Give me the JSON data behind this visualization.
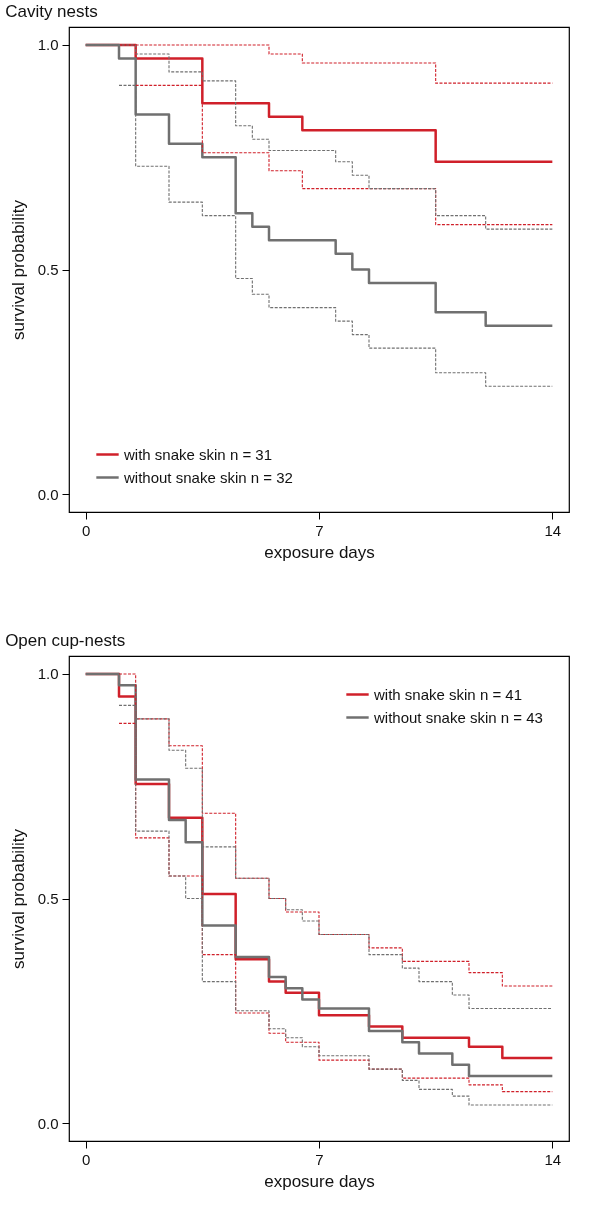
{
  "chart_data": [
    {
      "type": "step",
      "title": "Cavity nests",
      "xlabel": "exposure days",
      "ylabel": "survival probability",
      "xlim": [
        -0.5,
        14.5
      ],
      "xticks": [
        0,
        7,
        14
      ],
      "ylim": [
        -0.04,
        1.04
      ],
      "yticks": [
        {
          "value": 0,
          "label": "0.0"
        },
        {
          "value": 0.5,
          "label": "0.5"
        },
        {
          "value": 1,
          "label": "1.0"
        }
      ],
      "grid": false,
      "legend": "bottom left",
      "marker": "none",
      "series": [
        {
          "name": "with snake skin n = 31",
          "color": "#d0202a",
          "line_style": "solid",
          "x": [
            0,
            1.5,
            3.5,
            5.5,
            6.5,
            10.5,
            14
          ],
          "values": [
            1,
            0.97,
            0.87,
            0.84,
            0.81,
            0.74,
            0.74
          ]
        },
        {
          "name": "without snake skin n = 32",
          "color": "#707070",
          "line_style": "solid",
          "x": [
            0,
            1,
            1.5,
            2.5,
            3.5,
            4.5,
            5,
            5.5,
            7.5,
            8,
            8.5,
            10.5,
            12,
            14
          ],
          "values": [
            1,
            0.97,
            0.845,
            0.78,
            0.75,
            0.625,
            0.595,
            0.565,
            0.535,
            0.5,
            0.47,
            0.405,
            0.375,
            0.375
          ]
        },
        {
          "color": "#d0202a",
          "line_style": "dashed",
          "x": [
            1.5,
            5.5,
            6.5,
            10.5,
            14
          ],
          "values": [
            1,
            0.98,
            0.96,
            0.915,
            0.915
          ]
        },
        {
          "color": "#d0202a",
          "line_style": "dashed",
          "x": [
            1.5,
            3.5,
            5.5,
            6.5,
            10.5,
            14
          ],
          "values": [
            0.91,
            0.76,
            0.72,
            0.68,
            0.6,
            0.6
          ]
        },
        {
          "color": "#707070",
          "line_style": "dashed",
          "x": [
            0,
            1.5,
            2.5,
            3.5,
            4.5,
            5,
            5.5,
            7.5,
            8,
            8.5,
            10.5,
            12,
            14
          ],
          "values": [
            1,
            0.98,
            0.94,
            0.92,
            0.82,
            0.79,
            0.765,
            0.74,
            0.71,
            0.68,
            0.62,
            0.59,
            0.59
          ]
        },
        {
          "color": "#707070",
          "line_style": "dashed",
          "x": [
            1,
            1.5,
            2.5,
            3.5,
            4.5,
            5,
            5.5,
            7.5,
            8,
            8.5,
            10.5,
            12,
            14
          ],
          "values": [
            0.91,
            0.73,
            0.65,
            0.62,
            0.48,
            0.445,
            0.415,
            0.385,
            0.355,
            0.325,
            0.27,
            0.24,
            0.24
          ]
        }
      ]
    },
    {
      "type": "step",
      "title": "Open cup-nests",
      "xlabel": "exposure days",
      "ylabel": "survival probability",
      "xlim": [
        -0.5,
        14.5
      ],
      "xticks": [
        0,
        7,
        14
      ],
      "ylim": [
        -0.04,
        1.04
      ],
      "yticks": [
        {
          "value": 0,
          "label": "0.0"
        },
        {
          "value": 0.5,
          "label": "0.5"
        },
        {
          "value": 1,
          "label": "1.0"
        }
      ],
      "grid": false,
      "legend": "top right",
      "marker": "none",
      "series": [
        {
          "name": "with snake skin n = 41",
          "color": "#d0202a",
          "line_style": "solid",
          "x": [
            0,
            1,
            1.5,
            2.5,
            3.5,
            4.5,
            5.5,
            6,
            7,
            8.5,
            9.5,
            11.5,
            12.5,
            14
          ],
          "values": [
            1,
            0.95,
            0.755,
            0.68,
            0.51,
            0.365,
            0.315,
            0.29,
            0.24,
            0.215,
            0.19,
            0.17,
            0.145,
            0.145
          ]
        },
        {
          "name": "without snake skin n = 43",
          "color": "#707070",
          "line_style": "solid",
          "x": [
            0,
            1,
            1.5,
            2.5,
            3,
            3.5,
            4.5,
            5.5,
            6,
            6.5,
            7,
            8.5,
            9.5,
            10,
            11,
            11.5,
            14
          ],
          "values": [
            1,
            0.975,
            0.765,
            0.675,
            0.625,
            0.44,
            0.37,
            0.325,
            0.3,
            0.275,
            0.255,
            0.205,
            0.18,
            0.155,
            0.13,
            0.105,
            0.105
          ]
        },
        {
          "color": "#d0202a",
          "line_style": "dashed",
          "x": [
            1,
            1.5,
            2.5,
            3.5,
            4.5,
            5.5,
            6,
            7,
            8.5,
            9.5,
            11.5,
            12.5,
            14
          ],
          "values": [
            1,
            0.9,
            0.84,
            0.69,
            0.545,
            0.5,
            0.47,
            0.42,
            0.39,
            0.36,
            0.335,
            0.305,
            0.305
          ]
        },
        {
          "color": "#d0202a",
          "line_style": "dashed",
          "x": [
            1,
            1.5,
            2.5,
            3.5,
            4.5,
            5.5,
            6,
            7,
            8.5,
            9.5,
            11.5,
            12.5,
            14
          ],
          "values": [
            0.89,
            0.635,
            0.55,
            0.375,
            0.245,
            0.2,
            0.18,
            0.14,
            0.12,
            0.1,
            0.085,
            0.07,
            0.07
          ]
        },
        {
          "color": "#707070",
          "line_style": "dashed",
          "x": [
            1.5,
            2.5,
            3,
            3.5,
            4.5,
            5.5,
            6,
            6.5,
            7,
            8.5,
            9.5,
            10,
            11,
            11.5,
            14
          ],
          "values": [
            0.9,
            0.83,
            0.79,
            0.615,
            0.545,
            0.5,
            0.475,
            0.45,
            0.42,
            0.375,
            0.345,
            0.315,
            0.285,
            0.255,
            0.255
          ]
        },
        {
          "color": "#707070",
          "line_style": "dashed",
          "x": [
            1,
            1.5,
            2.5,
            3,
            3.5,
            4.5,
            5.5,
            6,
            6.5,
            7,
            8.5,
            9.5,
            10,
            11,
            11.5,
            14
          ],
          "values": [
            0.93,
            0.65,
            0.55,
            0.5,
            0.315,
            0.25,
            0.21,
            0.19,
            0.17,
            0.15,
            0.12,
            0.095,
            0.075,
            0.06,
            0.04,
            0.04
          ]
        }
      ]
    }
  ]
}
